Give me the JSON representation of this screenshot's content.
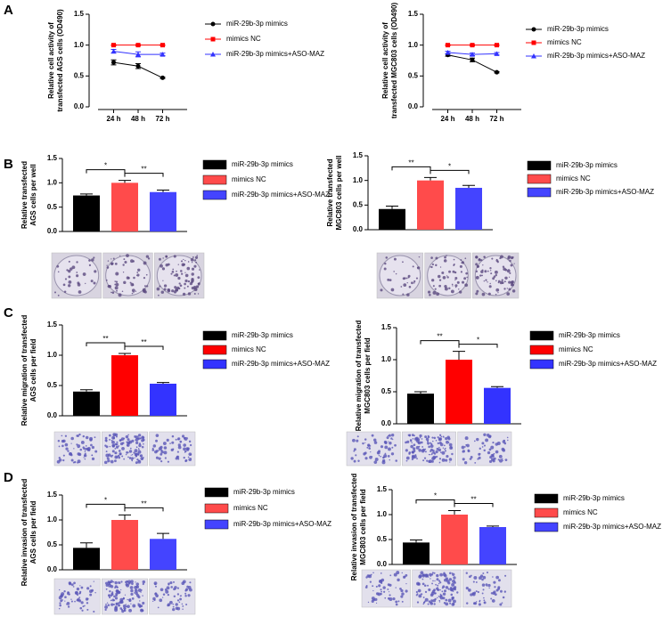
{
  "chart_data": [
    {
      "type": "line",
      "panel": "A",
      "ylabel": [
        "Relative cell activity of",
        "transfected AGS cells (OD490)"
      ],
      "categories": [
        "24 h",
        "48 h",
        "72 h"
      ],
      "series": [
        {
          "name": "miR-29b-3p mimics",
          "color": "#000000",
          "marker": "circle",
          "values": [
            0.72,
            0.66,
            0.47
          ],
          "errors": [
            0.04,
            0.04,
            0.01
          ]
        },
        {
          "name": "mimics NC",
          "color": "#ff0000",
          "marker": "square",
          "values": [
            1.0,
            1.0,
            1.0
          ],
          "errors": [
            0.01,
            0.01,
            0.01
          ]
        },
        {
          "name": "miR-29b-3p mimics+ASO-MAZ",
          "color": "#3333ff",
          "marker": "triangle",
          "values": [
            0.9,
            0.85,
            0.85
          ],
          "errors": [
            0.03,
            0.04,
            0.02
          ]
        }
      ],
      "ylim": [
        0,
        1.5
      ],
      "yticks": [
        {
          "value": 0,
          "label": "0.0"
        },
        {
          "value": 0.5,
          "label": "0.5"
        },
        {
          "value": 1,
          "label": "1.0"
        },
        {
          "value": 1.5,
          "label": "1.5"
        }
      ]
    },
    {
      "type": "line",
      "ylabel": [
        "Relative cell activity of",
        "transfected MGC803 cells (OD490)"
      ],
      "categories": [
        "24 h",
        "48 h",
        "72 h"
      ],
      "series": [
        {
          "name": "miR-29b-3p mimics",
          "color": "#000000",
          "marker": "circle",
          "values": [
            0.84,
            0.76,
            0.56
          ],
          "errors": [
            0.02,
            0.03,
            0.01
          ]
        },
        {
          "name": "mimics NC",
          "color": "#ff0000",
          "marker": "square",
          "values": [
            1.0,
            1.0,
            1.0
          ],
          "errors": [
            0.01,
            0.01,
            0.01
          ]
        },
        {
          "name": "miR-29b-3p mimics+ASO-MAZ",
          "color": "#3333ff",
          "marker": "triangle",
          "values": [
            0.88,
            0.85,
            0.86
          ],
          "errors": [
            0.02,
            0.02,
            0.02
          ]
        }
      ],
      "ylim": [
        0,
        1.5
      ],
      "yticks": [
        {
          "value": 0,
          "label": "0.0"
        },
        {
          "value": 0.5,
          "label": "0.5"
        },
        {
          "value": 1,
          "label": "1.0"
        },
        {
          "value": 1.5,
          "label": "1.5"
        }
      ]
    },
    {
      "type": "bar",
      "panel": "B",
      "ylabel": [
        "Relative transfected",
        "AGS cells per well"
      ],
      "categories": [
        null
      ],
      "series": [
        {
          "name": "miR-29b-3p mimics",
          "color": "#000000",
          "values": [
            0.74
          ],
          "errors": [
            0.03
          ]
        },
        {
          "name": "mimics NC",
          "color": "#ff4b4b",
          "values": [
            1.0
          ],
          "errors": [
            0.05
          ]
        },
        {
          "name": "miR-29b-3p mimics+ASO-MAZ",
          "color": "#4444ff",
          "values": [
            0.81
          ],
          "errors": [
            0.04
          ]
        }
      ],
      "significance": [
        "*",
        "**"
      ],
      "ylim": [
        0,
        1.5
      ],
      "yticks": [
        {
          "value": 0,
          "label": "0.0"
        },
        {
          "value": 0.5,
          "label": "0.5"
        },
        {
          "value": 1,
          "label": "1.0"
        },
        {
          "value": 1.5,
          "label": "1.5"
        }
      ]
    },
    {
      "type": "bar",
      "ylabel": [
        "Relative transfected",
        "MGC803 cells per well"
      ],
      "categories": [
        null
      ],
      "series": [
        {
          "name": "miR-29b-3p mimics",
          "color": "#000000",
          "values": [
            0.42
          ],
          "errors": [
            0.06
          ]
        },
        {
          "name": "mimics NC",
          "color": "#ff4b4b",
          "values": [
            1.0
          ],
          "errors": [
            0.06
          ]
        },
        {
          "name": "miR-29b-3p mimics+ASO-MAZ",
          "color": "#4444ff",
          "values": [
            0.85
          ],
          "errors": [
            0.05
          ]
        }
      ],
      "significance": [
        "**",
        "*"
      ],
      "ylim": [
        0,
        1.5
      ],
      "yticks": [
        {
          "value": 0,
          "label": "0.0"
        },
        {
          "value": 0.5,
          "label": "0.5"
        },
        {
          "value": 1,
          "label": "1.0"
        },
        {
          "value": 1.5,
          "label": "1.5"
        }
      ]
    },
    {
      "type": "bar",
      "panel": "C",
      "ylabel": [
        "Relative migration of transfected",
        "AGS cells per field"
      ],
      "categories": [
        null
      ],
      "series": [
        {
          "name": "miR-29b-3p mimics",
          "color": "#000000",
          "values": [
            0.4
          ],
          "errors": [
            0.03
          ]
        },
        {
          "name": "mimics NC",
          "color": "#ff0000",
          "values": [
            1.0
          ],
          "errors": [
            0.03
          ]
        },
        {
          "name": "miR-29b-3p mimics+ASO-MAZ",
          "color": "#3333ff",
          "values": [
            0.53
          ],
          "errors": [
            0.02
          ]
        }
      ],
      "significance": [
        "**",
        "**"
      ],
      "ylim": [
        0,
        1.5
      ],
      "yticks": [
        {
          "value": 0,
          "label": "0.0"
        },
        {
          "value": 0.5,
          "label": "0.5"
        },
        {
          "value": 1,
          "label": "1.0"
        },
        {
          "value": 1.5,
          "label": "1.5"
        }
      ]
    },
    {
      "type": "bar",
      "ylabel": [
        "Relative migration of transfected",
        "MGC803 cells per field"
      ],
      "categories": [
        null
      ],
      "series": [
        {
          "name": "miR-29b-3p mimics",
          "color": "#000000",
          "values": [
            0.47
          ],
          "errors": [
            0.03
          ]
        },
        {
          "name": "mimics NC",
          "color": "#ff0000",
          "values": [
            1.0
          ],
          "errors": [
            0.13
          ]
        },
        {
          "name": "miR-29b-3p mimics+ASO-MAZ",
          "color": "#3333ff",
          "values": [
            0.56
          ],
          "errors": [
            0.02
          ]
        }
      ],
      "significance": [
        "**",
        "*"
      ],
      "ylim": [
        0,
        1.5
      ],
      "yticks": [
        {
          "value": 0,
          "label": "0.0"
        },
        {
          "value": 0.5,
          "label": "0.5"
        },
        {
          "value": 1,
          "label": "1.0"
        },
        {
          "value": 1.5,
          "label": "1.5"
        }
      ]
    },
    {
      "type": "bar",
      "panel": "D",
      "ylabel": [
        "Relative invasion of transfected",
        "AGS cells per field"
      ],
      "categories": [
        null
      ],
      "series": [
        {
          "name": "miR-29b-3p mimics",
          "color": "#000000",
          "values": [
            0.44
          ],
          "errors": [
            0.1
          ]
        },
        {
          "name": "mimics NC",
          "color": "#ff4b4b",
          "values": [
            1.0
          ],
          "errors": [
            0.1
          ]
        },
        {
          "name": "miR-29b-3p mimics+ASO-MAZ",
          "color": "#4444ff",
          "values": [
            0.62
          ],
          "errors": [
            0.11
          ]
        }
      ],
      "significance": [
        "*",
        "**"
      ],
      "ylim": [
        0,
        1.5
      ],
      "yticks": [
        {
          "value": 0,
          "label": "0.0"
        },
        {
          "value": 0.5,
          "label": "0.5"
        },
        {
          "value": 1,
          "label": "1.0"
        },
        {
          "value": 1.5,
          "label": "1.5"
        }
      ]
    },
    {
      "type": "bar",
      "ylabel": [
        "Relative invasion of transfected",
        "MGC803 cells per field"
      ],
      "categories": [
        null
      ],
      "series": [
        {
          "name": "miR-29b-3p mimics",
          "color": "#000000",
          "values": [
            0.44
          ],
          "errors": [
            0.05
          ]
        },
        {
          "name": "mimics NC",
          "color": "#ff4b4b",
          "values": [
            1.0
          ],
          "errors": [
            0.08
          ]
        },
        {
          "name": "miR-29b-3p mimics+ASO-MAZ",
          "color": "#4444ff",
          "values": [
            0.75
          ],
          "errors": [
            0.02
          ]
        }
      ],
      "significance": [
        "*",
        "**"
      ],
      "ylim": [
        0,
        1.5
      ],
      "yticks": [
        {
          "value": 0,
          "label": "0.0"
        },
        {
          "value": 0.5,
          "label": "0.5"
        },
        {
          "value": 1,
          "label": "1.0"
        },
        {
          "value": 1.5,
          "label": "1.5"
        }
      ]
    }
  ]
}
